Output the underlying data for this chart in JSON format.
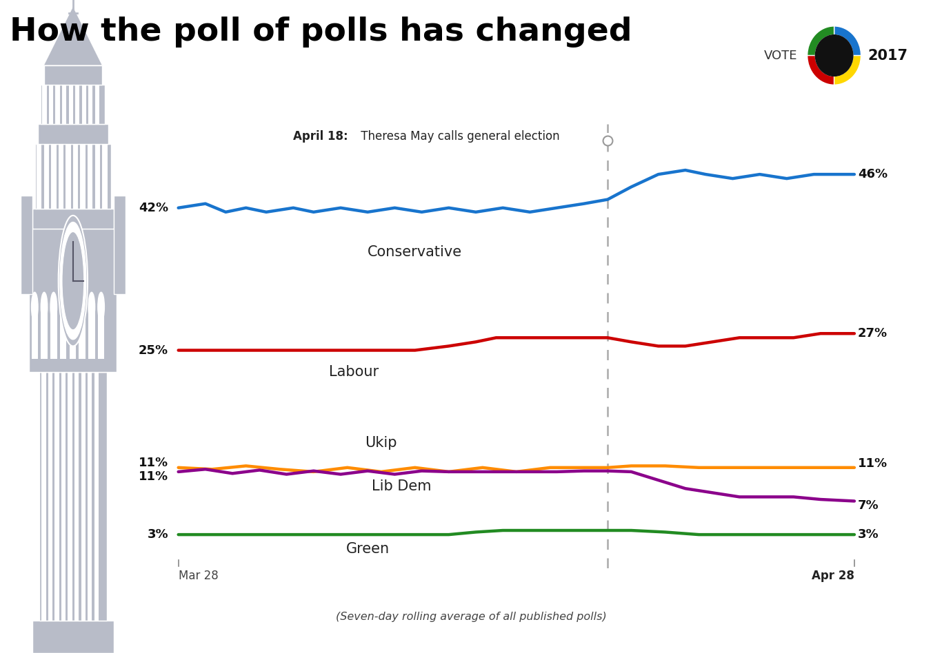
{
  "title": "How the poll of polls has changed",
  "subtitle": "(Seven-day rolling average of all published polls)",
  "annotation_bold": "April 18:",
  "annotation_normal": " Theresa May calls general election",
  "xlabel_left": "Mar 28",
  "xlabel_right": "Apr 28",
  "vline_x": 0.635,
  "background_color": "#ffffff",
  "title_fontsize": 34,
  "title_color": "#000000",
  "bb_color": "#b8bcc8",
  "bb_outline": "#ffffff",
  "conservative": {
    "label": "Conservative",
    "color": "#1874CD",
    "start_label": "42%",
    "end_label": "46%",
    "x": [
      0,
      0.04,
      0.07,
      0.1,
      0.13,
      0.17,
      0.2,
      0.24,
      0.28,
      0.32,
      0.36,
      0.4,
      0.44,
      0.48,
      0.52,
      0.56,
      0.6,
      0.635,
      0.67,
      0.71,
      0.75,
      0.78,
      0.82,
      0.86,
      0.9,
      0.94,
      0.97,
      1.0
    ],
    "y": [
      42,
      42.5,
      41.5,
      42,
      41.5,
      42,
      41.5,
      42,
      41.5,
      42,
      41.5,
      42,
      41.5,
      42,
      41.5,
      42,
      42.5,
      43,
      44.5,
      46,
      46.5,
      46,
      45.5,
      46,
      45.5,
      46,
      46,
      46
    ]
  },
  "labour": {
    "label": "Labour",
    "color": "#CC0000",
    "start_label": "25%",
    "end_label": "27%",
    "x": [
      0,
      0.05,
      0.1,
      0.15,
      0.2,
      0.25,
      0.3,
      0.35,
      0.4,
      0.44,
      0.47,
      0.5,
      0.54,
      0.57,
      0.6,
      0.635,
      0.67,
      0.71,
      0.75,
      0.79,
      0.83,
      0.87,
      0.91,
      0.95,
      1.0
    ],
    "y": [
      25,
      25,
      25,
      25,
      25,
      25,
      25,
      25,
      25.5,
      26,
      26.5,
      26.5,
      26.5,
      26.5,
      26.5,
      26.5,
      26,
      25.5,
      25.5,
      26,
      26.5,
      26.5,
      26.5,
      27,
      27
    ]
  },
  "ukip": {
    "label": "Ukip",
    "color": "#FF8C00",
    "start_label": "11%",
    "end_label": "11%",
    "x": [
      0,
      0.05,
      0.1,
      0.15,
      0.2,
      0.25,
      0.3,
      0.35,
      0.4,
      0.45,
      0.5,
      0.55,
      0.6,
      0.635,
      0.67,
      0.72,
      0.77,
      0.82,
      0.87,
      0.92,
      0.97,
      1.0
    ],
    "y": [
      11,
      10.8,
      11.2,
      10.8,
      10.5,
      11,
      10.5,
      11,
      10.5,
      11,
      10.5,
      11,
      11,
      11,
      11.2,
      11.2,
      11,
      11,
      11,
      11,
      11,
      11
    ]
  },
  "libdem": {
    "label": "Lib Dem",
    "color": "#8B008B",
    "start_label": "11%",
    "end_label": "7%",
    "x": [
      0,
      0.04,
      0.08,
      0.12,
      0.16,
      0.2,
      0.24,
      0.28,
      0.32,
      0.36,
      0.4,
      0.44,
      0.48,
      0.52,
      0.56,
      0.6,
      0.635,
      0.67,
      0.71,
      0.75,
      0.79,
      0.83,
      0.87,
      0.91,
      0.95,
      1.0
    ],
    "y": [
      10.5,
      10.8,
      10.3,
      10.7,
      10.2,
      10.6,
      10.2,
      10.6,
      10.2,
      10.6,
      10.5,
      10.5,
      10.5,
      10.5,
      10.5,
      10.6,
      10.6,
      10.5,
      9.5,
      8.5,
      8.0,
      7.5,
      7.5,
      7.5,
      7.2,
      7.0
    ]
  },
  "green": {
    "label": "Green",
    "color": "#228B22",
    "start_label": "3%",
    "end_label": "3%",
    "x": [
      0,
      0.1,
      0.2,
      0.3,
      0.4,
      0.44,
      0.48,
      0.52,
      0.56,
      0.6,
      0.635,
      0.67,
      0.72,
      0.77,
      0.82,
      0.87,
      0.92,
      0.97,
      1.0
    ],
    "y": [
      3,
      3,
      3,
      3,
      3,
      3.3,
      3.5,
      3.5,
      3.5,
      3.5,
      3.5,
      3.5,
      3.3,
      3,
      3,
      3,
      3,
      3,
      3
    ]
  }
}
